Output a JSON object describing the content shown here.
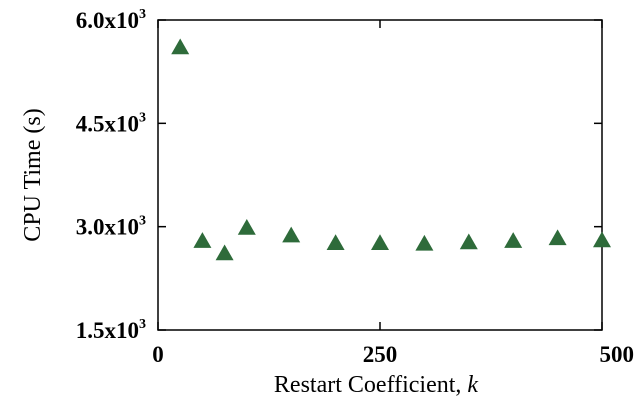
{
  "chart_data": {
    "type": "scatter",
    "xlabel": "Restart Coefficient, ",
    "xlabel_var": "k",
    "ylabel": "CPU Time (s)",
    "xlim": [
      0,
      500
    ],
    "ylim": [
      1500,
      6000
    ],
    "x_ticks": [
      {
        "value": 0,
        "label": "0"
      },
      {
        "value": 250,
        "label": "250"
      },
      {
        "value": 500,
        "label": "500"
      }
    ],
    "y_ticks": [
      {
        "value": 1500,
        "mantissa": "1.5x10",
        "exp": "3"
      },
      {
        "value": 3000,
        "mantissa": "3.0x10",
        "exp": "3"
      },
      {
        "value": 4500,
        "mantissa": "4.5x10",
        "exp": "3"
      },
      {
        "value": 6000,
        "mantissa": "6.0x10",
        "exp": "3"
      }
    ],
    "marker": "triangle",
    "marker_color": "#2e6b3a",
    "grid": false,
    "points": [
      {
        "x": 25,
        "y": 5600
      },
      {
        "x": 50,
        "y": 2790
      },
      {
        "x": 75,
        "y": 2610
      },
      {
        "x": 100,
        "y": 2980
      },
      {
        "x": 150,
        "y": 2870
      },
      {
        "x": 200,
        "y": 2760
      },
      {
        "x": 250,
        "y": 2760
      },
      {
        "x": 300,
        "y": 2750
      },
      {
        "x": 350,
        "y": 2770
      },
      {
        "x": 400,
        "y": 2790
      },
      {
        "x": 450,
        "y": 2830
      },
      {
        "x": 500,
        "y": 2800
      }
    ]
  }
}
